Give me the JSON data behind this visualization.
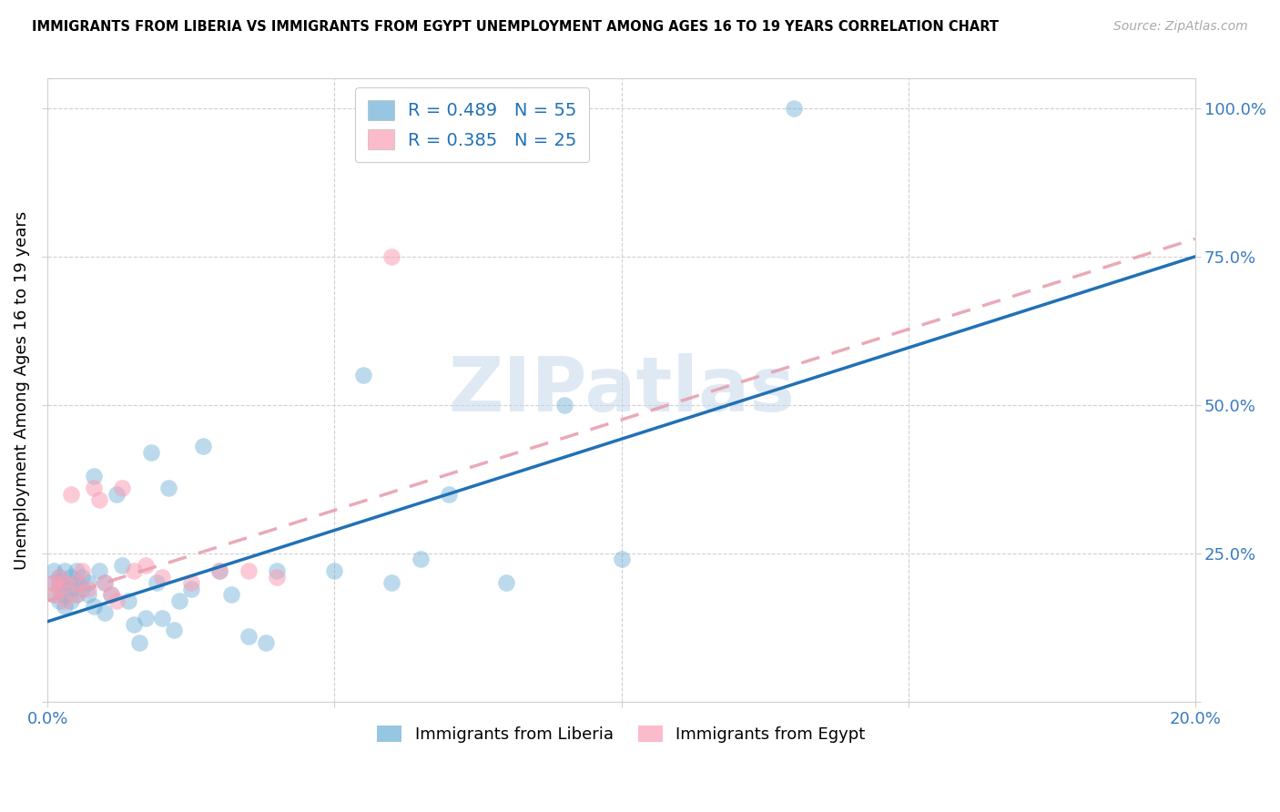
{
  "title": "IMMIGRANTS FROM LIBERIA VS IMMIGRANTS FROM EGYPT UNEMPLOYMENT AMONG AGES 16 TO 19 YEARS CORRELATION CHART",
  "source": "Source: ZipAtlas.com",
  "ylabel_label": "Unemployment Among Ages 16 to 19 years",
  "legend_label1": "Immigrants from Liberia",
  "legend_label2": "Immigrants from Egypt",
  "watermark": "ZIPatlas",
  "blue_color": "#6baed6",
  "pink_color": "#fa9fb5",
  "blue_line_color": "#2171b5",
  "pink_line_color": "#e8a0b0",
  "liberia_x": [
    0.001,
    0.001,
    0.001,
    0.002,
    0.002,
    0.002,
    0.002,
    0.003,
    0.003,
    0.003,
    0.003,
    0.004,
    0.004,
    0.004,
    0.005,
    0.005,
    0.005,
    0.006,
    0.006,
    0.007,
    0.007,
    0.008,
    0.008,
    0.009,
    0.01,
    0.01,
    0.011,
    0.012,
    0.013,
    0.014,
    0.015,
    0.016,
    0.017,
    0.018,
    0.019,
    0.02,
    0.021,
    0.022,
    0.023,
    0.025,
    0.027,
    0.03,
    0.032,
    0.035,
    0.038,
    0.04,
    0.05,
    0.055,
    0.06,
    0.065,
    0.07,
    0.08,
    0.09,
    0.1,
    0.13
  ],
  "liberia_y": [
    0.2,
    0.22,
    0.18,
    0.2,
    0.19,
    0.21,
    0.17,
    0.2,
    0.22,
    0.18,
    0.16,
    0.19,
    0.21,
    0.17,
    0.2,
    0.18,
    0.22,
    0.19,
    0.21,
    0.2,
    0.18,
    0.38,
    0.16,
    0.22,
    0.2,
    0.15,
    0.18,
    0.35,
    0.23,
    0.17,
    0.13,
    0.1,
    0.14,
    0.42,
    0.2,
    0.14,
    0.36,
    0.12,
    0.17,
    0.19,
    0.43,
    0.22,
    0.18,
    0.11,
    0.1,
    0.22,
    0.22,
    0.55,
    0.2,
    0.24,
    0.35,
    0.2,
    0.5,
    0.24,
    1.0
  ],
  "egypt_x": [
    0.001,
    0.001,
    0.002,
    0.002,
    0.003,
    0.003,
    0.004,
    0.005,
    0.005,
    0.006,
    0.007,
    0.008,
    0.009,
    0.01,
    0.011,
    0.012,
    0.013,
    0.015,
    0.017,
    0.02,
    0.025,
    0.03,
    0.035,
    0.04,
    0.06
  ],
  "egypt_y": [
    0.2,
    0.18,
    0.21,
    0.19,
    0.2,
    0.17,
    0.35,
    0.18,
    0.2,
    0.22,
    0.19,
    0.36,
    0.34,
    0.2,
    0.18,
    0.17,
    0.36,
    0.22,
    0.23,
    0.21,
    0.2,
    0.22,
    0.22,
    0.21,
    0.75
  ],
  "blue_line_x": [
    0.0,
    0.2
  ],
  "blue_line_y": [
    0.135,
    0.75
  ],
  "pink_line_x": [
    0.0,
    0.2
  ],
  "pink_line_y": [
    0.17,
    0.78
  ],
  "xlim": [
    0.0,
    0.2
  ],
  "ylim": [
    0.0,
    1.05
  ],
  "xticks": [
    0.0,
    0.05,
    0.1,
    0.15,
    0.2
  ],
  "yticks": [
    0.0,
    0.25,
    0.5,
    0.75,
    1.0
  ]
}
